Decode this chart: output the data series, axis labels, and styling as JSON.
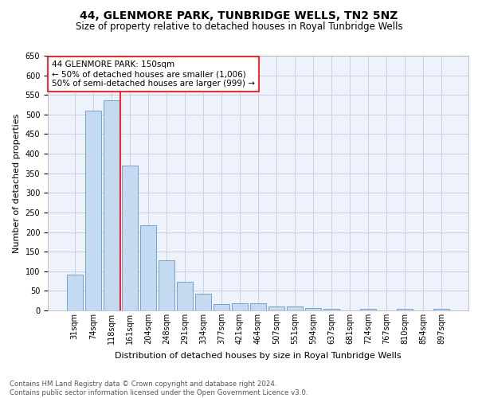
{
  "title": "44, GLENMORE PARK, TUNBRIDGE WELLS, TN2 5NZ",
  "subtitle": "Size of property relative to detached houses in Royal Tunbridge Wells",
  "xlabel": "Distribution of detached houses by size in Royal Tunbridge Wells",
  "ylabel": "Number of detached properties",
  "footer_line1": "Contains HM Land Registry data © Crown copyright and database right 2024.",
  "footer_line2": "Contains public sector information licensed under the Open Government Licence v3.0.",
  "categories": [
    "31sqm",
    "74sqm",
    "118sqm",
    "161sqm",
    "204sqm",
    "248sqm",
    "291sqm",
    "334sqm",
    "377sqm",
    "421sqm",
    "464sqm",
    "507sqm",
    "551sqm",
    "594sqm",
    "637sqm",
    "681sqm",
    "724sqm",
    "767sqm",
    "810sqm",
    "854sqm",
    "897sqm"
  ],
  "values": [
    92,
    510,
    537,
    370,
    218,
    127,
    73,
    43,
    16,
    19,
    19,
    11,
    11,
    7,
    5,
    1,
    5,
    1,
    5,
    1,
    5
  ],
  "bar_color": "#c5d9f0",
  "bar_edge_color": "#5b9bd5",
  "bar_width": 0.85,
  "annotation_text": "44 GLENMORE PARK: 150sqm\n← 50% of detached houses are smaller (1,006)\n50% of semi-detached houses are larger (999) →",
  "annotation_box_color": "white",
  "annotation_box_edge_color": "red",
  "vline_x": 2.5,
  "vline_color": "red",
  "ylim": [
    0,
    650
  ],
  "yticks": [
    0,
    50,
    100,
    150,
    200,
    250,
    300,
    350,
    400,
    450,
    500,
    550,
    600,
    650
  ],
  "bg_color": "#eef2fb",
  "grid_color": "#c8d0e8",
  "title_fontsize": 10,
  "subtitle_fontsize": 8.5,
  "axis_label_fontsize": 8,
  "tick_fontsize": 7,
  "annotation_fontsize": 7.5,
  "footer_fontsize": 6.2
}
